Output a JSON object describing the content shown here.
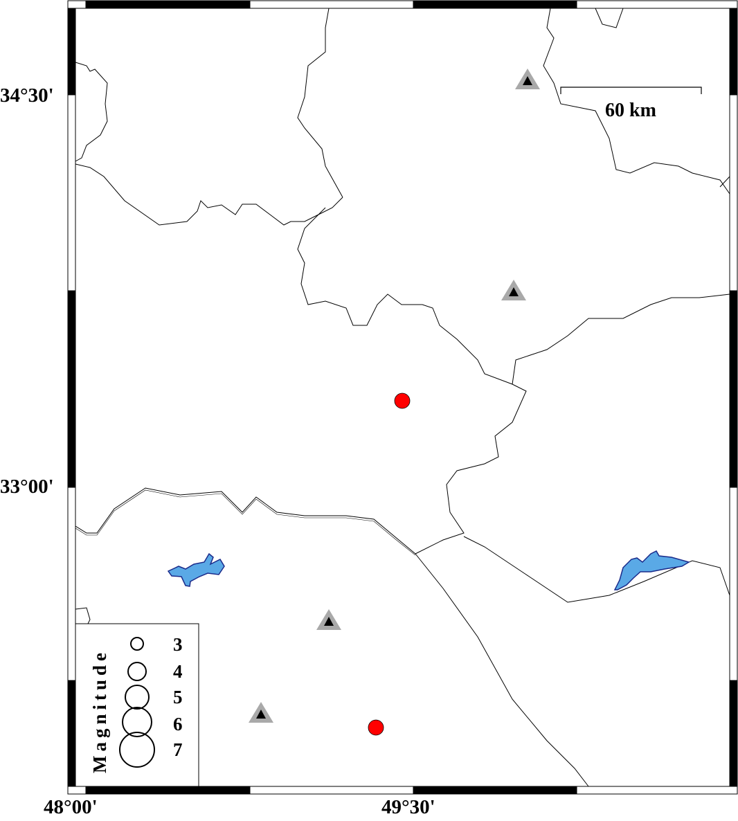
{
  "axes": {
    "lat_labels": [
      "34°30'",
      "33°00'"
    ],
    "lon_labels": [
      "48°00'",
      "49°30'"
    ]
  },
  "scale_bar": {
    "label": "60 km"
  },
  "legend": {
    "title": "Magnitude",
    "entries": [
      "3",
      "4",
      "5",
      "6",
      "7"
    ]
  },
  "symbols": {
    "station": "gray-triangle-with-black-triangle",
    "event": "red-circle"
  },
  "colors": {
    "event_fill": "#ff0000",
    "station_outer": "#a9a9a9",
    "station_inner": "#000000",
    "lake_fill": "#5aa9e6",
    "lake_stroke": "#1a2a8a",
    "border": "#000000"
  }
}
